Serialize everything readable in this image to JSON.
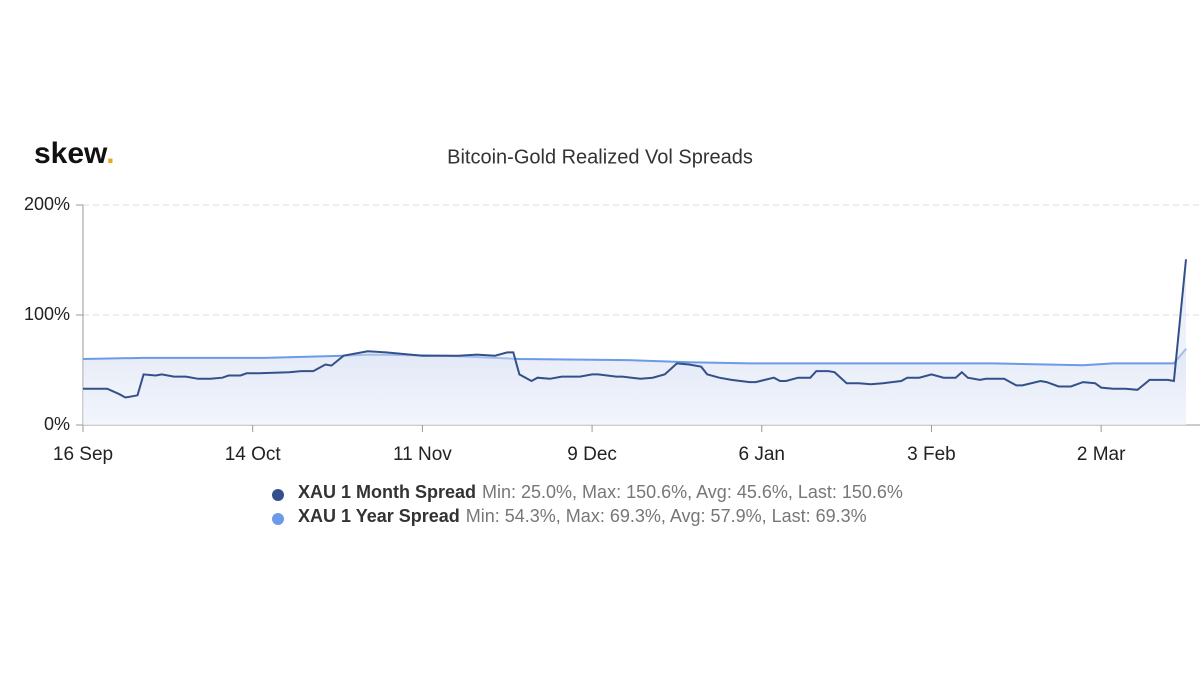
{
  "chart_data": {
    "type": "line",
    "logo": "skew",
    "logo_dot": ".",
    "title": "Bitcoin-Gold Realized Vol Spreads",
    "xlim": [
      0,
      182
    ],
    "xticks": [
      {
        "value": 0,
        "label": "16 Sep"
      },
      {
        "value": 28,
        "label": "14 Oct"
      },
      {
        "value": 56,
        "label": "11 Nov"
      },
      {
        "value": 84,
        "label": "9 Dec"
      },
      {
        "value": 112,
        "label": "6 Jan"
      },
      {
        "value": 140,
        "label": "3 Feb"
      },
      {
        "value": 168,
        "label": "2 Mar"
      }
    ],
    "ylim": [
      0,
      200
    ],
    "yticks": [
      {
        "value": 0,
        "label": "0%"
      },
      {
        "value": 100,
        "label": "100%"
      },
      {
        "value": 200,
        "label": "200%"
      }
    ],
    "grid": true,
    "series": [
      {
        "name": "XAU 1 Month Spread",
        "stats": "Min: 25.0%, Max: 150.6%, Avg: 45.6%, Last: 150.6%",
        "color": "#34508a",
        "x": [
          0,
          4,
          6,
          7,
          9,
          10,
          12,
          13,
          15,
          17,
          19,
          21,
          23,
          24,
          26,
          27,
          29,
          34,
          36,
          38,
          40,
          41,
          43,
          47,
          50,
          52,
          56,
          62,
          65,
          68,
          70,
          71,
          72,
          74,
          75,
          77,
          79,
          82,
          84,
          85,
          88,
          89,
          92,
          94,
          96,
          98,
          100,
          102,
          103,
          105,
          107,
          110,
          111,
          114,
          115,
          116,
          118,
          120,
          121,
          123,
          124,
          126,
          128,
          130,
          132,
          135,
          136,
          138,
          140,
          142,
          144,
          145,
          146,
          148,
          149,
          152,
          154,
          155,
          158,
          159,
          161,
          163,
          165,
          167,
          168,
          170,
          172,
          174,
          176,
          179,
          180,
          182
        ],
        "values": [
          33,
          33,
          28,
          25,
          27,
          46,
          45,
          46,
          44,
          44,
          42,
          42,
          43,
          45,
          45,
          47,
          47,
          48,
          49,
          49,
          55,
          54,
          63,
          67,
          66,
          65,
          63,
          63,
          64,
          63,
          66,
          66,
          46,
          40,
          43,
          42,
          44,
          44,
          46,
          46,
          44,
          44,
          42,
          43,
          46,
          56,
          55,
          53,
          46,
          43,
          41,
          39,
          39,
          43,
          40,
          40,
          43,
          43,
          49,
          49,
          48,
          38,
          38,
          37,
          38,
          40,
          43,
          43,
          46,
          43,
          43,
          48,
          43,
          41,
          42,
          42,
          36,
          36,
          40,
          39,
          35,
          35,
          39,
          38,
          34,
          33,
          33,
          32,
          41,
          41,
          40,
          150.6
        ]
      },
      {
        "name": "XAU 1 Year Spread",
        "stats": "Min: 54.3%, Max: 69.3%, Avg: 57.9%, Last: 69.3%",
        "color": "#6b9be8",
        "x": [
          0,
          10,
          30,
          43,
          47,
          60,
          72,
          90,
          100,
          110,
          130,
          150,
          165,
          170,
          180,
          182
        ],
        "values": [
          60,
          61,
          61,
          63,
          64,
          63,
          60,
          59,
          57,
          56,
          56,
          56,
          54.3,
          56,
          56,
          69.3
        ]
      }
    ]
  }
}
